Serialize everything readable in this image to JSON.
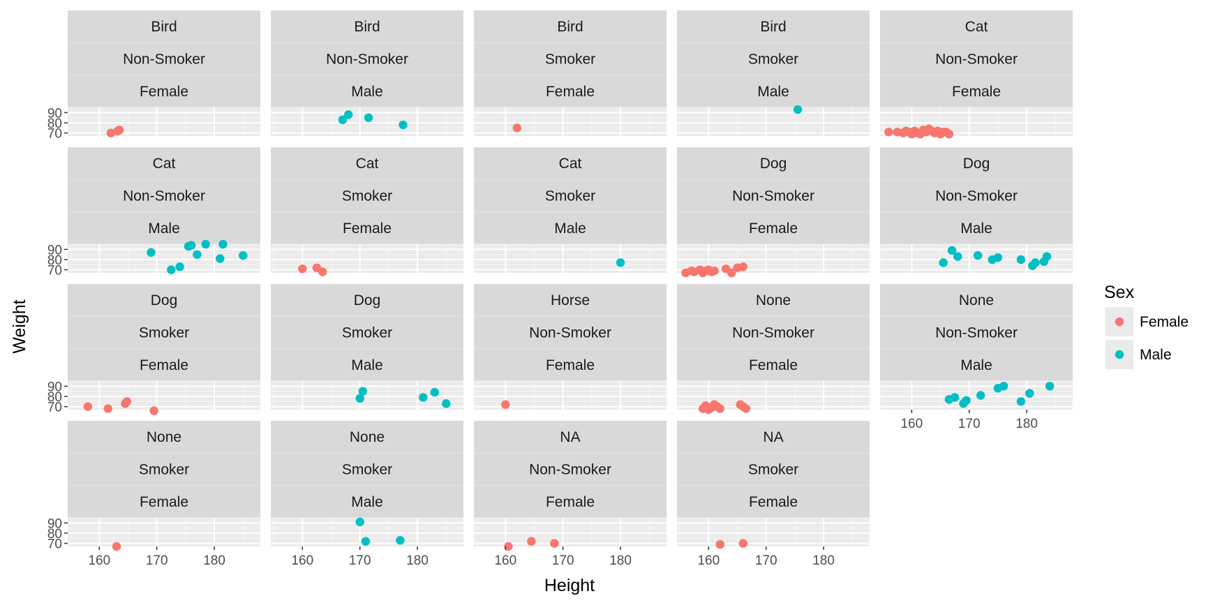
{
  "chart_data": {
    "type": "scatter",
    "xlabel": "Height",
    "ylabel": "Weight",
    "x_ticks": [
      160,
      170,
      180
    ],
    "y_ticks": [
      70,
      80,
      90
    ],
    "xlim": [
      154.5,
      188
    ],
    "ylim": [
      67,
      95
    ],
    "grid": true,
    "legend": {
      "title": "Sex",
      "position": "right",
      "entries": [
        {
          "name": "Female",
          "color": "#F8766D"
        },
        {
          "name": "Male",
          "color": "#00BFC4"
        }
      ]
    },
    "panels": [
      {
        "strip": [
          "Bird",
          "Non-Smoker",
          "Female"
        ],
        "sex": "Female",
        "points": [
          [
            162,
            70
          ],
          [
            163.5,
            73
          ],
          [
            163.2,
            72
          ]
        ]
      },
      {
        "strip": [
          "Bird",
          "Non-Smoker",
          "Male"
        ],
        "sex": "Male",
        "points": [
          [
            167,
            83
          ],
          [
            168,
            88
          ],
          [
            171.5,
            85
          ],
          [
            177.5,
            78
          ]
        ]
      },
      {
        "strip": [
          "Bird",
          "Smoker",
          "Female"
        ],
        "sex": "Female",
        "points": [
          [
            162,
            75
          ]
        ]
      },
      {
        "strip": [
          "Bird",
          "Smoker",
          "Male"
        ],
        "sex": "Male",
        "points": [
          [
            175.5,
            93
          ]
        ]
      },
      {
        "strip": [
          "Cat",
          "Non-Smoker",
          "Female"
        ],
        "sex": "Female",
        "points": [
          [
            156,
            71
          ],
          [
            157.5,
            71
          ],
          [
            158.5,
            70
          ],
          [
            159,
            72
          ],
          [
            159.5,
            71
          ],
          [
            160,
            69
          ],
          [
            160.5,
            72
          ],
          [
            161,
            70
          ],
          [
            161.5,
            69
          ],
          [
            162,
            73
          ],
          [
            162.5,
            71
          ],
          [
            163,
            74
          ],
          [
            163.5,
            72
          ],
          [
            164,
            70
          ],
          [
            164.5,
            72
          ],
          [
            165,
            69
          ],
          [
            165.5,
            71
          ],
          [
            166,
            71
          ],
          [
            166.5,
            69
          ]
        ]
      },
      {
        "strip": [
          "Cat",
          "Non-Smoker",
          "Male"
        ],
        "sex": "Male",
        "points": [
          [
            169,
            87
          ],
          [
            172.5,
            70
          ],
          [
            174,
            73
          ],
          [
            175.5,
            93
          ],
          [
            176,
            94
          ],
          [
            177,
            85
          ],
          [
            178.5,
            95
          ],
          [
            181,
            81
          ],
          [
            181.5,
            95
          ],
          [
            185,
            84
          ]
        ]
      },
      {
        "strip": [
          "Cat",
          "Smoker",
          "Female"
        ],
        "sex": "Female",
        "points": [
          [
            160,
            71
          ],
          [
            162.5,
            72
          ],
          [
            163.5,
            68
          ]
        ]
      },
      {
        "strip": [
          "Cat",
          "Smoker",
          "Male"
        ],
        "sex": "Male",
        "points": [
          [
            180,
            77
          ]
        ]
      },
      {
        "strip": [
          "Dog",
          "Non-Smoker",
          "Female"
        ],
        "sex": "Female",
        "points": [
          [
            156,
            67
          ],
          [
            157,
            69
          ],
          [
            157.5,
            68
          ],
          [
            158.5,
            70
          ],
          [
            159,
            67
          ],
          [
            159.5,
            69
          ],
          [
            160,
            70
          ],
          [
            160.5,
            68
          ],
          [
            161,
            69
          ],
          [
            163,
            71
          ],
          [
            164,
            67
          ],
          [
            165,
            72
          ],
          [
            166,
            73
          ]
        ]
      },
      {
        "strip": [
          "Dog",
          "Non-Smoker",
          "Male"
        ],
        "sex": "Male",
        "points": [
          [
            165.5,
            77
          ],
          [
            167,
            89
          ],
          [
            168,
            83
          ],
          [
            171.5,
            84
          ],
          [
            174,
            80
          ],
          [
            175,
            82
          ],
          [
            179,
            80
          ],
          [
            181,
            74
          ],
          [
            181.5,
            77
          ],
          [
            183,
            78
          ],
          [
            183.5,
            83
          ]
        ]
      },
      {
        "strip": [
          "Dog",
          "Smoker",
          "Female"
        ],
        "sex": "Female",
        "points": [
          [
            158,
            70
          ],
          [
            161.5,
            68
          ],
          [
            164.5,
            73
          ],
          [
            164.8,
            75
          ],
          [
            169.5,
            66
          ]
        ]
      },
      {
        "strip": [
          "Dog",
          "Smoker",
          "Male"
        ],
        "sex": "Male",
        "points": [
          [
            170,
            78
          ],
          [
            170.5,
            85
          ],
          [
            181,
            79
          ],
          [
            183,
            84
          ],
          [
            185,
            73
          ]
        ]
      },
      {
        "strip": [
          "Horse",
          "Non-Smoker",
          "Female"
        ],
        "sex": "Female",
        "points": [
          [
            160,
            72
          ]
        ]
      },
      {
        "strip": [
          "None",
          "Non-Smoker",
          "Female"
        ],
        "sex": "Female",
        "points": [
          [
            159,
            68
          ],
          [
            159.5,
            71
          ],
          [
            160,
            67
          ],
          [
            160.5,
            69
          ],
          [
            161,
            72
          ],
          [
            161.5,
            70
          ],
          [
            162,
            68
          ],
          [
            165.5,
            72
          ],
          [
            166,
            70
          ],
          [
            166.5,
            68
          ]
        ]
      },
      {
        "strip": [
          "None",
          "Non-Smoker",
          "Male"
        ],
        "sex": "Male",
        "points": [
          [
            166.5,
            77
          ],
          [
            167.5,
            79
          ],
          [
            169,
            73
          ],
          [
            169.5,
            76
          ],
          [
            172,
            81
          ],
          [
            175,
            88
          ],
          [
            176,
            90
          ],
          [
            179,
            75
          ],
          [
            180.5,
            83
          ],
          [
            184,
            90
          ]
        ]
      },
      {
        "strip": [
          "None",
          "Smoker",
          "Female"
        ],
        "sex": "Female",
        "points": [
          [
            163,
            67
          ]
        ]
      },
      {
        "strip": [
          "None",
          "Smoker",
          "Male"
        ],
        "sex": "Male",
        "points": [
          [
            170,
            91
          ],
          [
            171,
            72
          ],
          [
            177,
            73
          ]
        ]
      },
      {
        "strip": [
          "NA",
          "Non-Smoker",
          "Female"
        ],
        "sex": "Female",
        "points": [
          [
            160.5,
            67
          ],
          [
            164.5,
            72
          ],
          [
            168.5,
            70
          ]
        ]
      },
      {
        "strip": [
          "NA",
          "Smoker",
          "Female"
        ],
        "sex": "Female",
        "points": [
          [
            162,
            69
          ],
          [
            166,
            70
          ]
        ]
      }
    ]
  }
}
